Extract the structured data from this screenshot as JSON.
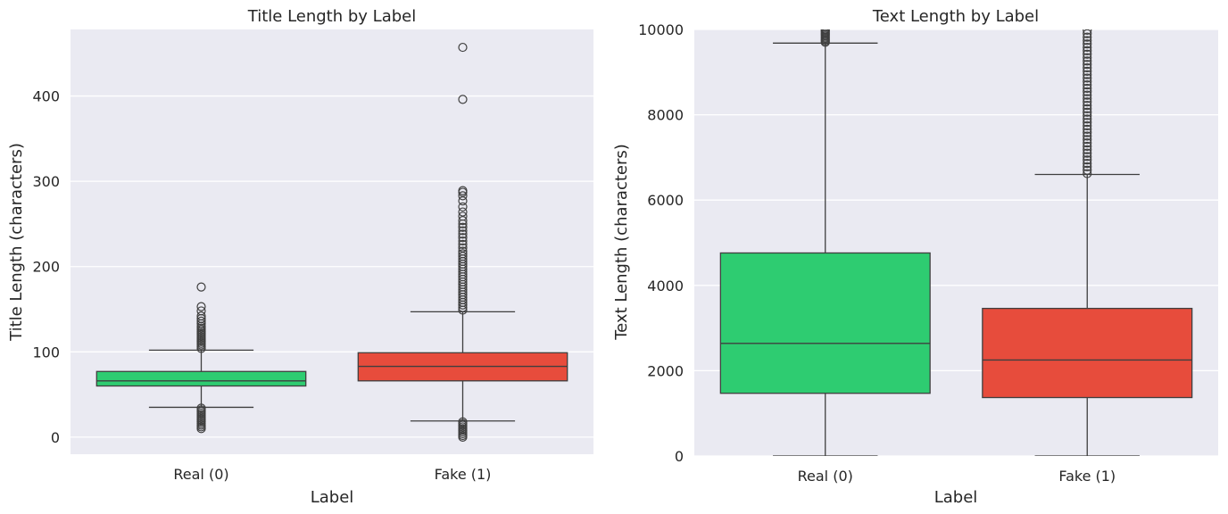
{
  "chart_data": [
    {
      "type": "box",
      "title": "Title Length by Label",
      "xlabel": "Label",
      "ylabel": "Title Length (characters)",
      "categories": [
        "Real (0)",
        "Fake (1)"
      ],
      "ylim": [
        -20,
        478
      ],
      "yticks": [
        0,
        100,
        200,
        300,
        400
      ],
      "grid": true,
      "boxes": [
        {
          "name": "Real (0)",
          "color": "#2ecc71",
          "whisker_low": 35,
          "q1": 60,
          "median": 66,
          "q3": 77,
          "whisker_high": 102,
          "outliers": [
            10,
            12,
            14,
            16,
            18,
            20,
            22,
            24,
            26,
            28,
            30,
            32,
            34,
            104,
            106,
            108,
            110,
            112,
            114,
            116,
            118,
            120,
            122,
            124,
            126,
            128,
            130,
            133,
            136,
            139,
            142,
            148,
            153,
            176
          ]
        },
        {
          "name": "Fake (1)",
          "color": "#e74c3c",
          "whisker_low": 19,
          "q1": 66,
          "median": 83,
          "q3": 99,
          "whisker_high": 147,
          "outliers": [
            0,
            2,
            4,
            6,
            8,
            10,
            12,
            14,
            16,
            18,
            149,
            152,
            155,
            158,
            161,
            164,
            167,
            170,
            173,
            176,
            179,
            182,
            185,
            188,
            191,
            194,
            197,
            200,
            203,
            206,
            209,
            212,
            215,
            218,
            222,
            226,
            230,
            234,
            238,
            242,
            246,
            250,
            254,
            259,
            264,
            270,
            277,
            283,
            287,
            289,
            396,
            457
          ]
        }
      ]
    },
    {
      "type": "box",
      "title": "Text Length by Label",
      "xlabel": "Label",
      "ylabel": "Text Length (characters)",
      "categories": [
        "Real (0)",
        "Fake (1)"
      ],
      "ylim": [
        0,
        10000
      ],
      "yticks": [
        0,
        2000,
        4000,
        6000,
        8000,
        10000
      ],
      "grid": true,
      "boxes": [
        {
          "name": "Real (0)",
          "color": "#2ecc71",
          "whisker_low": 0,
          "q1": 1470,
          "median": 2640,
          "q3": 4760,
          "whisker_high": 9680,
          "outliers": [
            9700,
            9730,
            9760,
            9790,
            9820,
            9850,
            9880,
            9910,
            9940,
            9970,
            10000
          ]
        },
        {
          "name": "Fake (1)",
          "color": "#e74c3c",
          "whisker_low": 0,
          "q1": 1370,
          "median": 2250,
          "q3": 3460,
          "whisker_high": 6600,
          "outliers": [
            6620,
            6700,
            6780,
            6860,
            6940,
            7020,
            7100,
            7180,
            7260,
            7340,
            7420,
            7500,
            7580,
            7660,
            7740,
            7820,
            7900,
            7980,
            8060,
            8140,
            8220,
            8300,
            8380,
            8460,
            8540,
            8620,
            8700,
            8780,
            8860,
            8940,
            9020,
            9100,
            9180,
            9260,
            9340,
            9420,
            9500,
            9580,
            9660,
            9740,
            9820,
            9900,
            9980
          ]
        }
      ]
    }
  ]
}
